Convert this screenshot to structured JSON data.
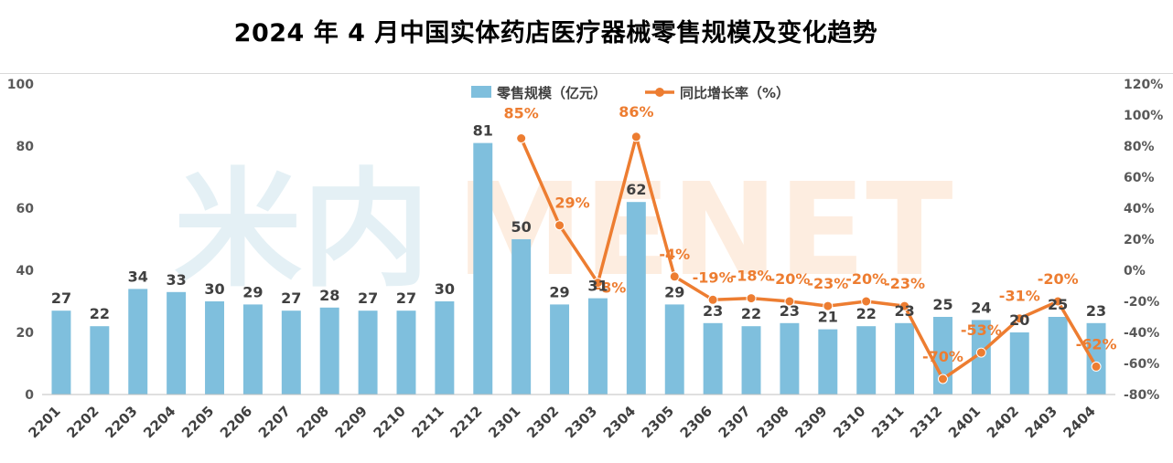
{
  "chart_data": {
    "type": "bar+line",
    "title": "2024 年 4 月中国实体药店医疗器械零售规模及变化趋势",
    "watermark": "米内 MENET",
    "categories": [
      "2201",
      "2202",
      "2203",
      "2204",
      "2205",
      "2206",
      "2207",
      "2208",
      "2209",
      "2210",
      "2211",
      "2212",
      "2301",
      "2302",
      "2303",
      "2304",
      "2305",
      "2306",
      "2307",
      "2308",
      "2309",
      "2310",
      "2311",
      "2312",
      "2401",
      "2402",
      "2403",
      "2404"
    ],
    "series": [
      {
        "name": "零售规模（亿元）",
        "type": "bar",
        "axis": "left",
        "color": "#7fbfdd",
        "values": [
          27,
          22,
          34,
          33,
          30,
          29,
          27,
          28,
          27,
          27,
          30,
          81,
          50,
          29,
          31,
          62,
          29,
          23,
          22,
          23,
          21,
          22,
          23,
          25,
          24,
          20,
          25,
          23
        ]
      },
      {
        "name": "同比增长率（%）",
        "type": "line",
        "axis": "right",
        "color": "#ed7d31",
        "values": [
          null,
          null,
          null,
          null,
          null,
          null,
          null,
          null,
          null,
          null,
          null,
          null,
          85,
          29,
          -8,
          86,
          -4,
          -19,
          -18,
          -20,
          -23,
          -20,
          -23,
          -70,
          -53,
          -31,
          -20,
          -62
        ],
        "labels": [
          null,
          null,
          null,
          null,
          null,
          null,
          null,
          null,
          null,
          null,
          null,
          null,
          "85%",
          "29%",
          "-8%",
          "86%",
          "-4%",
          "-19%",
          "-18%",
          "-20%",
          "-23%",
          "-20%",
          "-23%",
          "-70%",
          "-53%",
          "-31%",
          "-20%",
          "-62%"
        ]
      }
    ],
    "left_axis": {
      "min": 0,
      "max": 100,
      "ticks": [
        0,
        20,
        40,
        60,
        80,
        100
      ],
      "tick_labels": [
        "0",
        "20",
        "40",
        "60",
        "80",
        "100"
      ]
    },
    "right_axis": {
      "min": -80,
      "max": 120,
      "ticks": [
        -80,
        -60,
        -40,
        -20,
        0,
        20,
        40,
        60,
        80,
        100,
        120
      ],
      "tick_labels": [
        "-80%",
        "-60%",
        "-40%",
        "-20%",
        "0%",
        "20%",
        "40%",
        "60%",
        "80%",
        "100%",
        "120%"
      ]
    },
    "legend_position": "top-center",
    "grid": false
  }
}
